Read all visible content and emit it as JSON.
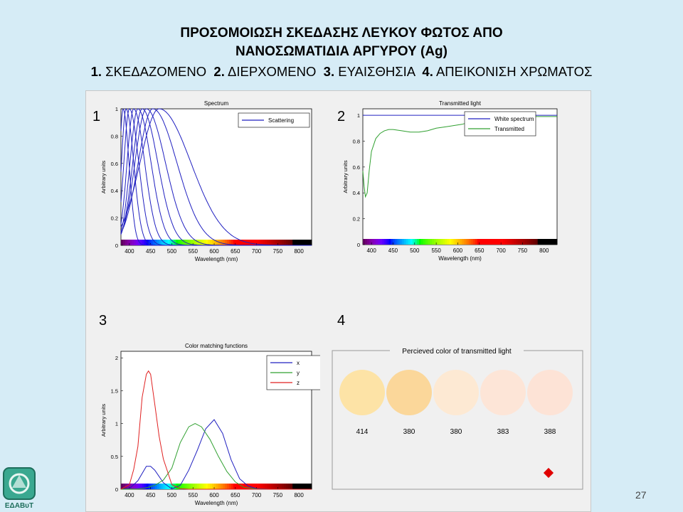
{
  "slide": {
    "title_line1": "ΠΡΟΣΟΜΟΙΩΣΗ ΣΚΕΔΑΣΗΣ ΛΕΥΚΟΥ ΦΩΤΟΣ ΑΠΟ",
    "title_line2": "ΝΑΝΟΣΩΜΑΤΙΔΙΑ ΑΡΓΥΡΟΥ (Ag)",
    "subtitle": [
      {
        "num": "1.",
        "text": " ΣΚΕΔΑΖΟΜΕΝΟ  "
      },
      {
        "num": "2.",
        "text": " ΔΙΕΡΧΟΜΕΝΟ  "
      },
      {
        "num": "3.",
        "text": " ΕΥΑΙΣΘΗΣΙΑ  "
      },
      {
        "num": "4.",
        "text": " ΑΠΕΙΚΟΝΙΣΗ ΧΡΩΜΑΤΟΣ"
      }
    ],
    "page_number": "27",
    "logo_text": "ΕΔΑΒυΤ",
    "panel_numbers": [
      "1",
      "2",
      "3",
      "4"
    ]
  },
  "percieved": {
    "title": "Percieved color of transmitted light",
    "swatches": [
      {
        "label": "414",
        "color": "#fde3a6"
      },
      {
        "label": "380",
        "color": "#fbd79a"
      },
      {
        "label": "380",
        "color": "#fde9d3"
      },
      {
        "label": "383",
        "color": "#fde5d7"
      },
      {
        "label": "388",
        "color": "#fde3d6"
      }
    ],
    "marker_color": "#e00000"
  },
  "chart_data": [
    {
      "type": "line",
      "title": "Spectrum",
      "xlabel": "Wavelength (nm)",
      "ylabel": "Arbitrary units",
      "xlim": [
        380,
        830
      ],
      "ylim": [
        0,
        1
      ],
      "xticks": [
        400,
        450,
        500,
        550,
        600,
        650,
        700,
        750,
        800
      ],
      "yticks": [
        0,
        0.2,
        0.4,
        0.6,
        0.8,
        1
      ],
      "legend": [
        "Scattering"
      ],
      "legend_position": "top-right",
      "colors": [
        "#2020c0"
      ],
      "peaks_nm": [
        385,
        392,
        400,
        410,
        420,
        430,
        440,
        455,
        470
      ],
      "widths_nm": [
        14,
        18,
        22,
        26,
        31,
        37,
        45,
        57,
        75
      ]
    },
    {
      "type": "line",
      "title": "Transmitted light",
      "xlabel": "Wavelength (nm)",
      "ylabel": "Arbitrary units",
      "xlim": [
        380,
        830
      ],
      "ylim": [
        0,
        1.05
      ],
      "xticks": [
        400,
        450,
        500,
        550,
        600,
        650,
        700,
        750,
        800
      ],
      "yticks": [
        0,
        0.2,
        0.4,
        0.6,
        0.8,
        1
      ],
      "legend_position": "top-right",
      "series": [
        {
          "name": "White spectrum",
          "color": "#2020c0",
          "x": [
            380,
            830
          ],
          "y": [
            1,
            1
          ]
        },
        {
          "name": "Transmitted",
          "color": "#30a030",
          "x": [
            380,
            383,
            386,
            390,
            395,
            400,
            410,
            420,
            430,
            440,
            450,
            470,
            490,
            510,
            530,
            550,
            570,
            590,
            610,
            630,
            650,
            690,
            730,
            770,
            810,
            830
          ],
          "y": [
            0.57,
            0.45,
            0.37,
            0.4,
            0.58,
            0.72,
            0.82,
            0.86,
            0.88,
            0.89,
            0.89,
            0.88,
            0.87,
            0.87,
            0.88,
            0.9,
            0.91,
            0.92,
            0.93,
            0.95,
            0.97,
            0.98,
            0.99,
            0.99,
            0.99,
            0.99
          ]
        }
      ]
    },
    {
      "type": "line",
      "title": "Color matching functions",
      "xlabel": "Wavelength (nm)",
      "ylabel": "Arbitrary units",
      "xlim": [
        380,
        830
      ],
      "ylim": [
        0,
        2.1
      ],
      "xticks": [
        400,
        450,
        500,
        550,
        600,
        650,
        700,
        750,
        800
      ],
      "yticks": [
        0,
        0.5,
        1,
        1.5,
        2
      ],
      "legend_position": "top-right",
      "series": [
        {
          "name": "x",
          "color": "#2020c0",
          "x": [
            380,
            400,
            420,
            440,
            450,
            460,
            480,
            500,
            520,
            540,
            560,
            580,
            600,
            620,
            640,
            660,
            680,
            700,
            730,
            760,
            830
          ],
          "y": [
            0.0,
            0.01,
            0.13,
            0.35,
            0.35,
            0.29,
            0.1,
            0.005,
            0.06,
            0.29,
            0.59,
            0.92,
            1.06,
            0.85,
            0.45,
            0.16,
            0.05,
            0.01,
            0.0,
            0.0,
            0.0
          ]
        },
        {
          "name": "y",
          "color": "#30a030",
          "x": [
            380,
            420,
            440,
            460,
            480,
            500,
            520,
            540,
            555,
            570,
            590,
            610,
            630,
            650,
            670,
            700,
            730,
            830
          ],
          "y": [
            0.0,
            0.004,
            0.023,
            0.06,
            0.14,
            0.32,
            0.71,
            0.95,
            1.0,
            0.95,
            0.76,
            0.5,
            0.27,
            0.11,
            0.03,
            0.004,
            0.0,
            0.0
          ]
        },
        {
          "name": "z",
          "color": "#e02020",
          "x": [
            380,
            400,
            410,
            420,
            430,
            440,
            445,
            450,
            460,
            470,
            480,
            490,
            500,
            520,
            540,
            560,
            830
          ],
          "y": [
            0.0,
            0.07,
            0.3,
            0.65,
            1.4,
            1.75,
            1.8,
            1.75,
            1.29,
            0.81,
            0.46,
            0.27,
            0.07,
            0.01,
            0.0,
            0.0,
            0.0
          ]
        }
      ]
    }
  ]
}
